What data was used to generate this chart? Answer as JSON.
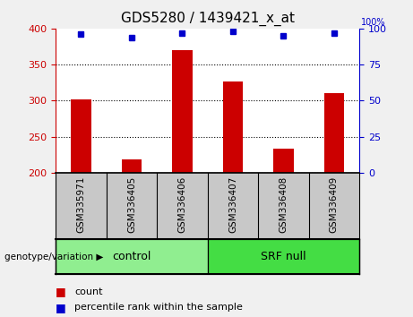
{
  "title": "GDS5280 / 1439421_x_at",
  "samples": [
    "GSM335971",
    "GSM336405",
    "GSM336406",
    "GSM336407",
    "GSM336408",
    "GSM336409"
  ],
  "counts": [
    302,
    218,
    370,
    327,
    234,
    311
  ],
  "percentile_ranks": [
    96,
    94,
    97,
    98,
    95,
    97
  ],
  "ylim_left": [
    200,
    400
  ],
  "ylim_right": [
    0,
    100
  ],
  "yticks_left": [
    200,
    250,
    300,
    350,
    400
  ],
  "yticks_right": [
    0,
    25,
    50,
    75,
    100
  ],
  "bar_color": "#cc0000",
  "dot_color": "#0000cc",
  "bar_width": 0.4,
  "groups": [
    {
      "label": "control",
      "indices": [
        0,
        1,
        2
      ],
      "color": "#90ee90"
    },
    {
      "label": "SRF null",
      "indices": [
        3,
        4,
        5
      ],
      "color": "#44dd44"
    }
  ],
  "genotype_label": "genotype/variation",
  "legend_count_label": "count",
  "legend_percentile_label": "percentile rank within the sample",
  "grid_color": "black",
  "grid_style": "dotted",
  "tick_color_left": "#cc0000",
  "tick_color_right": "#0000cc",
  "sample_bg_color": "#c8c8c8",
  "plot_bg_color": "white",
  "fig_bg_color": "#f0f0f0"
}
